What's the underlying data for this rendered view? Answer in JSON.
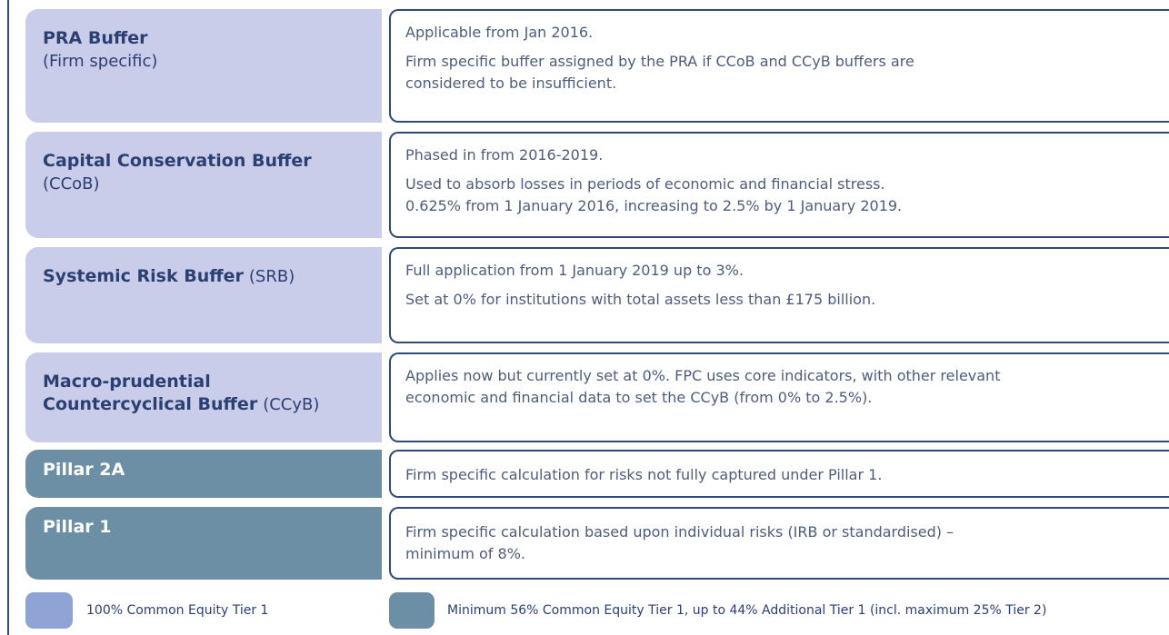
{
  "rows": [
    {
      "title": [
        "PRA Buffer"
      ],
      "note": "(Firm specific)",
      "paragraphs": [
        [
          "Applicable from Jan 2016."
        ],
        [
          "Firm specific buffer assigned by the PRA if CCoB and CCyB buffers are",
          "considered to be insufficient."
        ]
      ]
    },
    {
      "title": [
        "Capital Conservation Buffer"
      ],
      "note": "(CCoB)",
      "paragraphs": [
        [
          "Phased in from 2016-2019."
        ],
        [
          "Used to absorb losses in periods of economic and financial stress.",
          "0.625% from 1 January 2016, increasing to 2.5% by 1 January 2019."
        ]
      ]
    },
    {
      "title": [
        "Systemic Risk Buffer"
      ],
      "note": "(SRB)",
      "paragraphs": [
        [
          "Full application from 1 January 2019 up to 3%."
        ],
        [
          "Set at 0% for institutions with total assets less than £175 billion."
        ]
      ]
    },
    {
      "title": [
        "Macro-prudential",
        "Countercyclical Buffer"
      ],
      "note": "(CCyB)",
      "paragraphs": [
        [
          "Applies now but currently set at 0%. FPC uses core indicators, with other relevant",
          "economic and financial data to set the CCyB (from 0% to 2.5%)."
        ]
      ]
    },
    {
      "title": [
        "Pillar 2A"
      ],
      "paragraphs": [
        [
          "Firm specific calculation for risks not fully captured under Pillar 1."
        ]
      ]
    },
    {
      "title": [
        "Pillar 1"
      ],
      "paragraphs": [
        [
          "Firm specific calculation based upon individual risks (IRB or standardised) –",
          "minimum of 8%."
        ]
      ]
    }
  ],
  "legend": [
    "100% Common Equity Tier 1",
    "Minimum 56% Common Equity Tier 1, up to 44% Additional Tier 1 (incl. maximum 25% Tier 2)"
  ]
}
